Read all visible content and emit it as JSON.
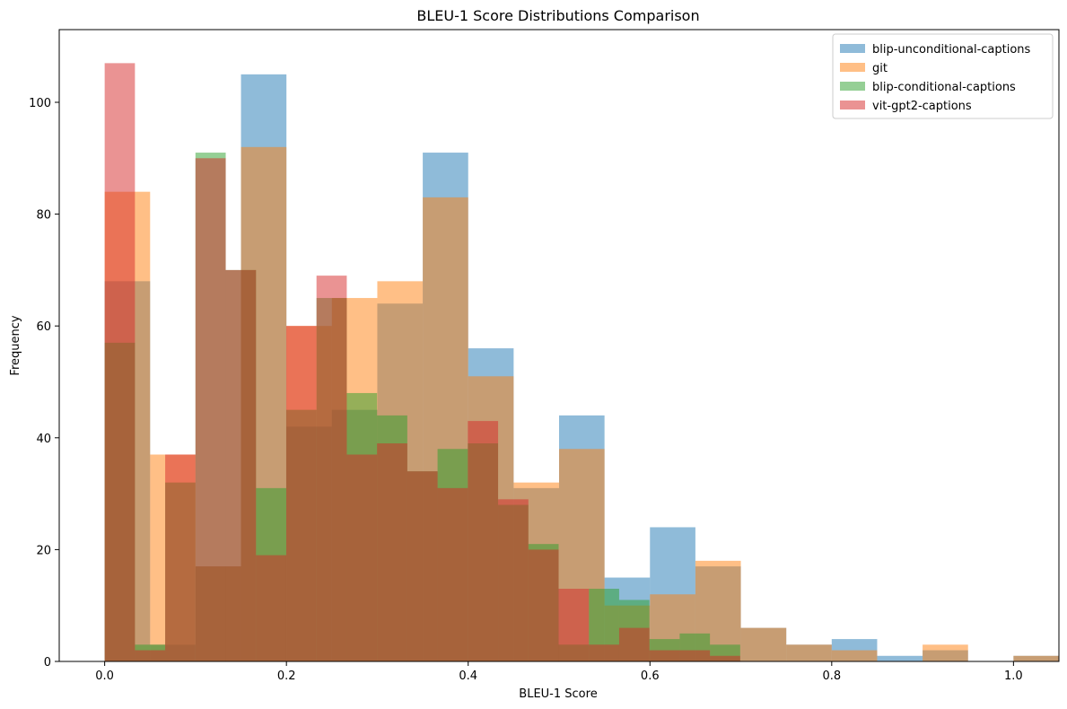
{
  "chart_data": {
    "type": "bar",
    "title": "BLEU-1 Score Distributions Comparison",
    "xlabel": "BLEU-1 Score",
    "ylabel": "Frequency",
    "xlim": [
      -0.05,
      1.05
    ],
    "ylim": [
      0,
      113
    ],
    "xticks": [
      0.0,
      0.2,
      0.4,
      0.6,
      0.8,
      1.0
    ],
    "xtick_labels": [
      "0.0",
      "0.2",
      "0.4",
      "0.6",
      "0.8",
      "1.0"
    ],
    "yticks": [
      0,
      20,
      40,
      60,
      80,
      100
    ],
    "ytick_labels": [
      "0",
      "20",
      "40",
      "60",
      "80",
      "100"
    ],
    "legend_position": "top-right",
    "alpha": 0.5,
    "series": [
      {
        "name": "blip-unconditional-captions",
        "color": "#1f77b4",
        "bin_start": 0.0,
        "bin_width": 0.05,
        "counts": [
          68,
          3,
          17,
          105,
          42,
          45,
          64,
          91,
          56,
          31,
          44,
          15,
          24,
          17,
          6,
          3,
          4,
          1,
          2,
          0,
          1
        ]
      },
      {
        "name": "git",
        "color": "#ff7f0e",
        "bin_start": 0.0,
        "bin_width": 0.05,
        "counts": [
          84,
          37,
          17,
          92,
          60,
          65,
          68,
          83,
          51,
          32,
          38,
          10,
          12,
          18,
          6,
          3,
          2,
          0,
          3,
          0,
          1
        ]
      },
      {
        "name": "blip-conditional-captions",
        "color": "#2ca02c",
        "bin_start": 0.0,
        "bin_width": 0.0333,
        "counts": [
          57,
          3,
          32,
          91,
          70,
          31,
          45,
          65,
          48,
          44,
          34,
          38,
          39,
          28,
          21,
          3,
          13,
          11,
          4,
          5,
          3
        ]
      },
      {
        "name": "vit-gpt2-captions",
        "color": "#d62728",
        "bin_start": 0.0,
        "bin_width": 0.0333,
        "counts": [
          107,
          2,
          37,
          90,
          70,
          19,
          60,
          69,
          37,
          39,
          34,
          31,
          43,
          29,
          20,
          13,
          3,
          6,
          2,
          2,
          1
        ]
      }
    ]
  }
}
